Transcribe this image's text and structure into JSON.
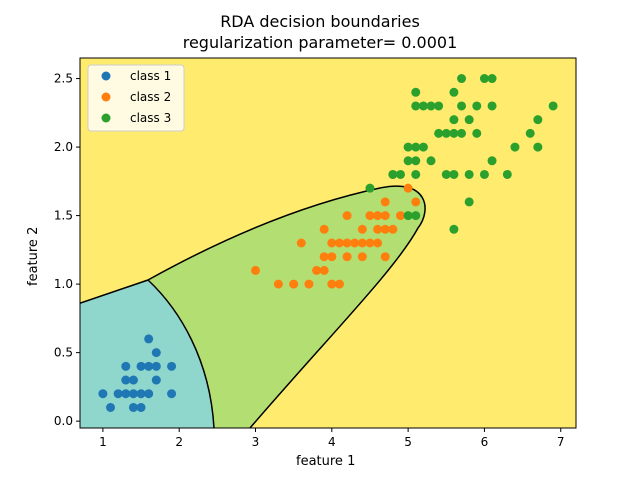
{
  "chart_data": {
    "type": "scatter",
    "title": "RDA decision boundaries",
    "subtitle": "regularization parameter= 0.0001",
    "xlabel": "feature 1",
    "ylabel": "feature 2",
    "xlim": [
      0.7,
      7.2
    ],
    "ylim": [
      -0.05,
      2.65
    ],
    "xticks": [
      "1",
      "2",
      "3",
      "4",
      "5",
      "6",
      "7"
    ],
    "yticks": [
      "0.0",
      "0.5",
      "1.0",
      "1.5",
      "2.0",
      "2.5"
    ],
    "legend_position": "top-left",
    "region_colors": {
      "class 1": "#8fd6cc",
      "class 2": "#b3df72",
      "class 3": "#ffeb6e"
    },
    "series": [
      {
        "name": "class 1",
        "color": "#1f77b4",
        "points": [
          [
            1.0,
            0.2
          ],
          [
            1.1,
            0.1
          ],
          [
            1.2,
            0.2
          ],
          [
            1.3,
            0.2
          ],
          [
            1.3,
            0.3
          ],
          [
            1.3,
            0.4
          ],
          [
            1.4,
            0.1
          ],
          [
            1.4,
            0.2
          ],
          [
            1.4,
            0.3
          ],
          [
            1.5,
            0.1
          ],
          [
            1.5,
            0.2
          ],
          [
            1.5,
            0.4
          ],
          [
            1.6,
            0.2
          ],
          [
            1.6,
            0.4
          ],
          [
            1.6,
            0.6
          ],
          [
            1.7,
            0.3
          ],
          [
            1.7,
            0.4
          ],
          [
            1.7,
            0.5
          ],
          [
            1.9,
            0.2
          ],
          [
            1.9,
            0.4
          ]
        ]
      },
      {
        "name": "class 2",
        "color": "#ff7f0e",
        "points": [
          [
            3.0,
            1.1
          ],
          [
            3.3,
            1.0
          ],
          [
            3.5,
            1.0
          ],
          [
            3.6,
            1.3
          ],
          [
            3.7,
            1.0
          ],
          [
            3.8,
            1.1
          ],
          [
            3.9,
            1.1
          ],
          [
            3.9,
            1.2
          ],
          [
            3.9,
            1.4
          ],
          [
            4.0,
            1.0
          ],
          [
            4.0,
            1.2
          ],
          [
            4.0,
            1.3
          ],
          [
            4.1,
            1.0
          ],
          [
            4.1,
            1.3
          ],
          [
            4.2,
            1.2
          ],
          [
            4.2,
            1.3
          ],
          [
            4.2,
            1.5
          ],
          [
            4.3,
            1.3
          ],
          [
            4.4,
            1.2
          ],
          [
            4.4,
            1.3
          ],
          [
            4.4,
            1.4
          ],
          [
            4.5,
            1.3
          ],
          [
            4.5,
            1.5
          ],
          [
            4.6,
            1.3
          ],
          [
            4.6,
            1.4
          ],
          [
            4.6,
            1.5
          ],
          [
            4.7,
            1.2
          ],
          [
            4.7,
            1.4
          ],
          [
            4.7,
            1.5
          ],
          [
            4.7,
            1.6
          ],
          [
            4.8,
            1.4
          ],
          [
            4.8,
            1.8
          ],
          [
            4.9,
            1.5
          ],
          [
            5.0,
            1.7
          ],
          [
            5.1,
            1.6
          ]
        ]
      },
      {
        "name": "class 3",
        "color": "#2ca02c",
        "points": [
          [
            4.5,
            1.7
          ],
          [
            4.8,
            1.8
          ],
          [
            4.9,
            1.8
          ],
          [
            5.0,
            1.5
          ],
          [
            5.0,
            1.9
          ],
          [
            5.0,
            2.0
          ],
          [
            5.1,
            1.5
          ],
          [
            5.1,
            1.8
          ],
          [
            5.1,
            1.9
          ],
          [
            5.1,
            2.0
          ],
          [
            5.1,
            2.3
          ],
          [
            5.1,
            2.4
          ],
          [
            5.2,
            2.0
          ],
          [
            5.2,
            2.3
          ],
          [
            5.3,
            1.9
          ],
          [
            5.3,
            2.3
          ],
          [
            5.4,
            2.1
          ],
          [
            5.4,
            2.3
          ],
          [
            5.5,
            1.8
          ],
          [
            5.5,
            2.1
          ],
          [
            5.6,
            1.4
          ],
          [
            5.6,
            1.8
          ],
          [
            5.6,
            2.1
          ],
          [
            5.6,
            2.2
          ],
          [
            5.6,
            2.4
          ],
          [
            5.7,
            2.1
          ],
          [
            5.7,
            2.3
          ],
          [
            5.7,
            2.5
          ],
          [
            5.8,
            1.6
          ],
          [
            5.8,
            1.8
          ],
          [
            5.8,
            2.2
          ],
          [
            5.9,
            2.1
          ],
          [
            5.9,
            2.3
          ],
          [
            6.0,
            1.8
          ],
          [
            6.0,
            2.5
          ],
          [
            6.1,
            1.9
          ],
          [
            6.1,
            2.3
          ],
          [
            6.1,
            2.5
          ],
          [
            6.3,
            1.8
          ],
          [
            6.4,
            2.0
          ],
          [
            6.6,
            2.1
          ],
          [
            6.7,
            2.0
          ],
          [
            6.7,
            2.2
          ],
          [
            6.9,
            2.3
          ]
        ]
      }
    ]
  }
}
